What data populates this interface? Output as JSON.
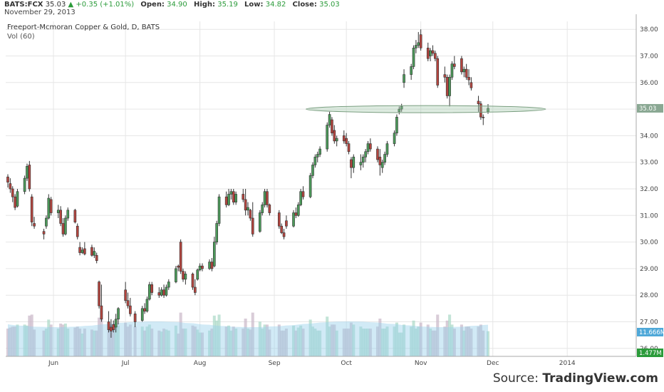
{
  "header": {
    "symbol": "BATS:FCX",
    "last": "35.03",
    "change_arrow": "▲",
    "change": "+0.35 (+1.01%)",
    "open_label": "Open:",
    "open": "34.90",
    "high_label": "High:",
    "high": "35.19",
    "low_label": "Low:",
    "low": "34.82",
    "close_label": "Close:",
    "close": "35.03",
    "date": "November 29, 2013"
  },
  "source": {
    "prefix": "Source: ",
    "name": "TradingView.com"
  },
  "chart_data": {
    "type": "candlestick",
    "title": "Freeport-Mcmoran Copper & Gold, D, BATS",
    "volume_label": "Vol (60)",
    "ylim": [
      25.7,
      38.3
    ],
    "yticks": [
      26,
      27,
      28,
      29,
      30,
      31,
      32,
      33,
      34,
      35,
      36,
      37,
      38
    ],
    "ytick_labels": [
      "26.00",
      "27.00",
      "28.00",
      "29.00",
      "30.00",
      "31.00",
      "32.00",
      "33.00",
      "34.00",
      "35.00",
      "36.00",
      "37.00",
      "38.00"
    ],
    "x_labels": [
      "Jun",
      "Jul",
      "Aug",
      "Sep",
      "Oct",
      "Nov",
      "Dec",
      "2014"
    ],
    "x_label_dates": [
      "2013-06-01",
      "2013-07-01",
      "2013-08-01",
      "2013-09-01",
      "2013-10-01",
      "2013-11-01",
      "2013-12-01",
      "2014-01-01"
    ],
    "grid": true,
    "price_marker": "35.03",
    "volume_marker": "11.666M",
    "volume_ma_marker": "1.477M",
    "annotation": {
      "type": "ellipse",
      "from_date": "2013-09-16",
      "to_date": "2013-12-23",
      "price": 35.0
    },
    "colors": {
      "up": "#4c9a5a",
      "down": "#b4453f",
      "grid": "#e6e6e6",
      "ellipse": "#9fc5a5",
      "volume_ma": "#9ad1ec",
      "marker": "#4fa8d8"
    },
    "candles": [
      {
        "date": "2013-05-13",
        "o": 32.45,
        "h": 32.55,
        "l": 32.05,
        "c": 32.25
      },
      {
        "date": "2013-05-14",
        "o": 32.2,
        "h": 32.4,
        "l": 31.85,
        "c": 32.0
      },
      {
        "date": "2013-05-15",
        "o": 32.0,
        "h": 32.1,
        "l": 31.5,
        "c": 31.7
      },
      {
        "date": "2013-05-16",
        "o": 31.7,
        "h": 31.8,
        "l": 31.2,
        "c": 31.3
      },
      {
        "date": "2013-05-17",
        "o": 31.35,
        "h": 32.0,
        "l": 31.3,
        "c": 31.9
      },
      {
        "date": "2013-05-20",
        "o": 31.9,
        "h": 32.5,
        "l": 31.8,
        "c": 32.4
      },
      {
        "date": "2013-05-21",
        "o": 32.4,
        "h": 32.95,
        "l": 32.3,
        "c": 32.85
      },
      {
        "date": "2013-05-22",
        "o": 32.9,
        "h": 33.05,
        "l": 31.9,
        "c": 32.0
      },
      {
        "date": "2013-05-23",
        "o": 31.7,
        "h": 31.8,
        "l": 30.6,
        "c": 30.75
      },
      {
        "date": "2013-05-24",
        "o": 30.7,
        "h": 30.95,
        "l": 30.5,
        "c": 30.6
      },
      {
        "date": "2013-05-28",
        "o": 30.4,
        "h": 30.5,
        "l": 30.1,
        "c": 30.3
      },
      {
        "date": "2013-05-29",
        "o": 30.6,
        "h": 31.0,
        "l": 30.5,
        "c": 30.9
      },
      {
        "date": "2013-05-30",
        "o": 30.9,
        "h": 31.8,
        "l": 30.85,
        "c": 31.65
      },
      {
        "date": "2013-05-31",
        "o": 31.6,
        "h": 31.7,
        "l": 31.0,
        "c": 31.1
      },
      {
        "date": "2013-06-03",
        "o": 31.1,
        "h": 31.4,
        "l": 30.9,
        "c": 31.2
      },
      {
        "date": "2013-06-04",
        "o": 31.2,
        "h": 31.35,
        "l": 30.6,
        "c": 30.7
      },
      {
        "date": "2013-06-05",
        "o": 30.7,
        "h": 30.9,
        "l": 30.2,
        "c": 30.3
      },
      {
        "date": "2013-06-06",
        "o": 30.3,
        "h": 31.0,
        "l": 30.25,
        "c": 30.9
      },
      {
        "date": "2013-06-07",
        "o": 30.9,
        "h": 31.3,
        "l": 30.8,
        "c": 31.2
      },
      {
        "date": "2013-06-10",
        "o": 31.2,
        "h": 31.25,
        "l": 30.7,
        "c": 30.75
      },
      {
        "date": "2013-06-11",
        "o": 30.6,
        "h": 30.7,
        "l": 30.1,
        "c": 30.2
      },
      {
        "date": "2013-06-12",
        "o": 29.8,
        "h": 30.0,
        "l": 29.5,
        "c": 29.6
      },
      {
        "date": "2013-06-13",
        "o": 29.6,
        "h": 29.8,
        "l": 29.55,
        "c": 29.7
      },
      {
        "date": "2013-06-14",
        "o": 29.75,
        "h": 30.0,
        "l": 29.5,
        "c": 29.55
      },
      {
        "date": "2013-06-17",
        "o": 29.8,
        "h": 29.9,
        "l": 29.45,
        "c": 29.5
      },
      {
        "date": "2013-06-18",
        "o": 29.5,
        "h": 29.8,
        "l": 29.4,
        "c": 29.65
      },
      {
        "date": "2013-06-19",
        "o": 29.5,
        "h": 29.6,
        "l": 29.2,
        "c": 29.3
      },
      {
        "date": "2013-06-20",
        "o": 28.5,
        "h": 28.55,
        "l": 27.5,
        "c": 27.6
      },
      {
        "date": "2013-06-21",
        "o": 27.6,
        "h": 28.4,
        "l": 27.0,
        "c": 27.1
      },
      {
        "date": "2013-06-24",
        "o": 27.0,
        "h": 27.4,
        "l": 26.6,
        "c": 26.7
      },
      {
        "date": "2013-06-25",
        "o": 26.8,
        "h": 27.1,
        "l": 26.4,
        "c": 26.65
      },
      {
        "date": "2013-06-26",
        "o": 26.9,
        "h": 27.05,
        "l": 26.6,
        "c": 26.7
      },
      {
        "date": "2013-06-27",
        "o": 26.8,
        "h": 27.3,
        "l": 26.6,
        "c": 27.1
      },
      {
        "date": "2013-06-28",
        "o": 27.1,
        "h": 27.55,
        "l": 26.9,
        "c": 27.5
      },
      {
        "date": "2013-07-01",
        "o": 28.2,
        "h": 28.5,
        "l": 27.7,
        "c": 27.8
      },
      {
        "date": "2013-07-02",
        "o": 27.8,
        "h": 28.1,
        "l": 27.5,
        "c": 27.6
      },
      {
        "date": "2013-07-03",
        "o": 27.6,
        "h": 27.9,
        "l": 27.2,
        "c": 27.3
      },
      {
        "date": "2013-07-05",
        "o": 27.3,
        "h": 27.4,
        "l": 26.8,
        "c": 27.0
      },
      {
        "date": "2013-07-08",
        "o": 27.05,
        "h": 27.6,
        "l": 27.0,
        "c": 27.5
      },
      {
        "date": "2013-07-09",
        "o": 27.5,
        "h": 27.7,
        "l": 27.3,
        "c": 27.4
      },
      {
        "date": "2013-07-10",
        "o": 27.4,
        "h": 27.95,
        "l": 27.35,
        "c": 27.85
      },
      {
        "date": "2013-07-11",
        "o": 27.85,
        "h": 28.5,
        "l": 27.8,
        "c": 28.4
      },
      {
        "date": "2013-07-12",
        "o": 28.4,
        "h": 28.5,
        "l": 28.0,
        "c": 28.1
      },
      {
        "date": "2013-07-15",
        "o": 28.1,
        "h": 28.3,
        "l": 27.9,
        "c": 28.0
      },
      {
        "date": "2013-07-16",
        "o": 28.0,
        "h": 28.3,
        "l": 27.95,
        "c": 28.2
      },
      {
        "date": "2013-07-17",
        "o": 28.2,
        "h": 28.4,
        "l": 27.9,
        "c": 28.0
      },
      {
        "date": "2013-07-18",
        "o": 28.0,
        "h": 28.4,
        "l": 27.95,
        "c": 28.3
      },
      {
        "date": "2013-07-19",
        "o": 28.3,
        "h": 28.6,
        "l": 28.2,
        "c": 28.5
      },
      {
        "date": "2013-07-22",
        "o": 28.5,
        "h": 29.1,
        "l": 28.45,
        "c": 29.0
      },
      {
        "date": "2013-07-23",
        "o": 29.1,
        "h": 29.15,
        "l": 28.9,
        "c": 29.05
      },
      {
        "date": "2013-07-24",
        "o": 30.0,
        "h": 30.1,
        "l": 28.8,
        "c": 28.9
      },
      {
        "date": "2013-07-25",
        "o": 28.9,
        "h": 29.0,
        "l": 28.5,
        "c": 28.6
      },
      {
        "date": "2013-07-26",
        "o": 28.6,
        "h": 28.9,
        "l": 28.4,
        "c": 28.8
      },
      {
        "date": "2013-07-29",
        "o": 28.8,
        "h": 28.85,
        "l": 28.2,
        "c": 28.3
      },
      {
        "date": "2013-07-30",
        "o": 28.3,
        "h": 28.6,
        "l": 28.0,
        "c": 28.1
      },
      {
        "date": "2013-07-31",
        "o": 28.6,
        "h": 29.0,
        "l": 28.55,
        "c": 28.95
      },
      {
        "date": "2013-08-01",
        "o": 28.95,
        "h": 29.2,
        "l": 28.9,
        "c": 29.1
      },
      {
        "date": "2013-08-02",
        "o": 29.1,
        "h": 29.2,
        "l": 28.9,
        "c": 29.0
      },
      {
        "date": "2013-08-05",
        "o": 29.0,
        "h": 29.35,
        "l": 28.95,
        "c": 29.25
      },
      {
        "date": "2013-08-06",
        "o": 29.25,
        "h": 29.4,
        "l": 28.9,
        "c": 29.0
      },
      {
        "date": "2013-08-07",
        "o": 29.1,
        "h": 30.2,
        "l": 29.05,
        "c": 30.0
      },
      {
        "date": "2013-08-08",
        "o": 30.0,
        "h": 30.8,
        "l": 29.9,
        "c": 30.7
      },
      {
        "date": "2013-08-09",
        "o": 30.7,
        "h": 31.8,
        "l": 30.6,
        "c": 31.7
      },
      {
        "date": "2013-08-12",
        "o": 31.7,
        "h": 31.9,
        "l": 31.3,
        "c": 31.4
      },
      {
        "date": "2013-08-13",
        "o": 31.4,
        "h": 32.0,
        "l": 31.35,
        "c": 31.8
      },
      {
        "date": "2013-08-14",
        "o": 31.8,
        "h": 32.0,
        "l": 31.6,
        "c": 31.9
      },
      {
        "date": "2013-08-15",
        "o": 31.9,
        "h": 32.0,
        "l": 31.4,
        "c": 31.5
      },
      {
        "date": "2013-08-16",
        "o": 31.5,
        "h": 31.9,
        "l": 31.4,
        "c": 31.8
      },
      {
        "date": "2013-08-19",
        "o": 31.8,
        "h": 32.0,
        "l": 31.5,
        "c": 31.6
      },
      {
        "date": "2013-08-20",
        "o": 31.6,
        "h": 32.0,
        "l": 31.0,
        "c": 31.2
      },
      {
        "date": "2013-08-21",
        "o": 31.2,
        "h": 31.5,
        "l": 31.0,
        "c": 31.3
      },
      {
        "date": "2013-08-22",
        "o": 31.2,
        "h": 31.25,
        "l": 30.8,
        "c": 30.9
      },
      {
        "date": "2013-08-23",
        "o": 30.9,
        "h": 31.5,
        "l": 30.2,
        "c": 30.3
      },
      {
        "date": "2013-08-26",
        "o": 30.4,
        "h": 31.2,
        "l": 30.35,
        "c": 31.1
      },
      {
        "date": "2013-08-27",
        "o": 31.1,
        "h": 31.5,
        "l": 31.0,
        "c": 31.4
      },
      {
        "date": "2013-08-28",
        "o": 31.4,
        "h": 32.0,
        "l": 31.3,
        "c": 31.9
      },
      {
        "date": "2013-08-29",
        "o": 31.9,
        "h": 32.0,
        "l": 31.3,
        "c": 31.4
      },
      {
        "date": "2013-08-30",
        "o": 31.4,
        "h": 31.45,
        "l": 31.0,
        "c": 31.1
      },
      {
        "date": "2013-09-03",
        "o": 31.1,
        "h": 31.2,
        "l": 30.5,
        "c": 30.6
      },
      {
        "date": "2013-09-04",
        "o": 30.6,
        "h": 30.7,
        "l": 30.3,
        "c": 30.35
      },
      {
        "date": "2013-09-05",
        "o": 30.35,
        "h": 30.5,
        "l": 30.1,
        "c": 30.2
      },
      {
        "date": "2013-09-06",
        "o": 30.8,
        "h": 31.0,
        "l": 30.5,
        "c": 30.6
      },
      {
        "date": "2013-09-09",
        "o": 30.6,
        "h": 31.2,
        "l": 30.55,
        "c": 31.1
      },
      {
        "date": "2013-09-10",
        "o": 31.1,
        "h": 31.3,
        "l": 30.9,
        "c": 31.0
      },
      {
        "date": "2013-09-11",
        "o": 31.0,
        "h": 31.5,
        "l": 30.95,
        "c": 31.4
      },
      {
        "date": "2013-09-12",
        "o": 31.4,
        "h": 32.0,
        "l": 31.35,
        "c": 31.9
      },
      {
        "date": "2013-09-13",
        "o": 31.9,
        "h": 32.1,
        "l": 31.6,
        "c": 31.7
      },
      {
        "date": "2013-09-16",
        "o": 31.7,
        "h": 32.6,
        "l": 31.65,
        "c": 32.5
      },
      {
        "date": "2013-09-17",
        "o": 32.5,
        "h": 33.0,
        "l": 32.4,
        "c": 32.9
      },
      {
        "date": "2013-09-18",
        "o": 32.9,
        "h": 33.3,
        "l": 32.8,
        "c": 33.2
      },
      {
        "date": "2013-09-19",
        "o": 33.2,
        "h": 33.4,
        "l": 33.0,
        "c": 33.3
      },
      {
        "date": "2013-09-20",
        "o": 33.3,
        "h": 33.6,
        "l": 33.2,
        "c": 33.5
      },
      {
        "date": "2013-09-23",
        "o": 33.5,
        "h": 34.5,
        "l": 33.4,
        "c": 34.4
      },
      {
        "date": "2013-09-24",
        "o": 34.4,
        "h": 34.9,
        "l": 34.3,
        "c": 34.8
      },
      {
        "date": "2013-09-25",
        "o": 34.6,
        "h": 34.7,
        "l": 34.0,
        "c": 34.1
      },
      {
        "date": "2013-09-26",
        "o": 34.2,
        "h": 34.4,
        "l": 33.7,
        "c": 33.8
      },
      {
        "date": "2013-09-27",
        "o": 33.8,
        "h": 34.0,
        "l": 33.6,
        "c": 33.9
      },
      {
        "date": "2013-09-30",
        "o": 34.0,
        "h": 34.2,
        "l": 33.7,
        "c": 33.8
      },
      {
        "date": "2013-10-01",
        "o": 33.9,
        "h": 34.1,
        "l": 33.6,
        "c": 33.7
      },
      {
        "date": "2013-10-02",
        "o": 33.7,
        "h": 33.8,
        "l": 33.3,
        "c": 33.4
      },
      {
        "date": "2013-10-03",
        "o": 33.1,
        "h": 33.2,
        "l": 32.4,
        "c": 32.8
      },
      {
        "date": "2013-10-04",
        "o": 32.8,
        "h": 33.3,
        "l": 32.6,
        "c": 33.2
      },
      {
        "date": "2013-10-07",
        "o": 32.9,
        "h": 33.3,
        "l": 32.7,
        "c": 33.0
      },
      {
        "date": "2013-10-08",
        "o": 33.0,
        "h": 33.3,
        "l": 32.8,
        "c": 33.2
      },
      {
        "date": "2013-10-09",
        "o": 33.2,
        "h": 33.5,
        "l": 33.0,
        "c": 33.4
      },
      {
        "date": "2013-10-10",
        "o": 33.4,
        "h": 33.8,
        "l": 33.3,
        "c": 33.7
      },
      {
        "date": "2013-10-11",
        "o": 33.7,
        "h": 33.9,
        "l": 33.4,
        "c": 33.5
      },
      {
        "date": "2013-10-14",
        "o": 33.5,
        "h": 33.6,
        "l": 33.0,
        "c": 33.1
      },
      {
        "date": "2013-10-15",
        "o": 33.2,
        "h": 33.5,
        "l": 32.5,
        "c": 32.9
      },
      {
        "date": "2013-10-16",
        "o": 32.8,
        "h": 33.1,
        "l": 32.6,
        "c": 33.0
      },
      {
        "date": "2013-10-17",
        "o": 33.0,
        "h": 33.4,
        "l": 32.9,
        "c": 33.3
      },
      {
        "date": "2013-10-18",
        "o": 33.3,
        "h": 33.8,
        "l": 33.2,
        "c": 33.7
      },
      {
        "date": "2013-10-21",
        "o": 33.7,
        "h": 34.2,
        "l": 33.6,
        "c": 34.1
      },
      {
        "date": "2013-10-22",
        "o": 34.1,
        "h": 34.8,
        "l": 34.0,
        "c": 34.7
      },
      {
        "date": "2013-10-23",
        "o": 34.9,
        "h": 35.1,
        "l": 34.8,
        "c": 35.0
      },
      {
        "date": "2013-10-24",
        "o": 35.0,
        "h": 35.2,
        "l": 34.9,
        "c": 35.1
      },
      {
        "date": "2013-10-25",
        "o": 36.0,
        "h": 36.5,
        "l": 35.8,
        "c": 36.3
      },
      {
        "date": "2013-10-28",
        "o": 36.3,
        "h": 36.7,
        "l": 36.1,
        "c": 36.6
      },
      {
        "date": "2013-10-29",
        "o": 36.6,
        "h": 37.4,
        "l": 36.5,
        "c": 37.3
      },
      {
        "date": "2013-10-30",
        "o": 37.3,
        "h": 37.6,
        "l": 37.1,
        "c": 37.4
      },
      {
        "date": "2013-10-31",
        "o": 37.4,
        "h": 37.9,
        "l": 37.3,
        "c": 37.5
      },
      {
        "date": "2013-11-01",
        "o": 37.8,
        "h": 38.0,
        "l": 37.2,
        "c": 37.3
      },
      {
        "date": "2013-11-04",
        "o": 37.3,
        "h": 37.5,
        "l": 36.8,
        "c": 36.9
      },
      {
        "date": "2013-11-05",
        "o": 37.0,
        "h": 37.3,
        "l": 36.8,
        "c": 37.2
      },
      {
        "date": "2013-11-06",
        "o": 37.2,
        "h": 37.4,
        "l": 37.0,
        "c": 37.1
      },
      {
        "date": "2013-11-07",
        "o": 37.1,
        "h": 37.2,
        "l": 36.8,
        "c": 36.9
      },
      {
        "date": "2013-11-08",
        "o": 36.9,
        "h": 37.0,
        "l": 35.8,
        "c": 35.9
      },
      {
        "date": "2013-11-11",
        "o": 36.3,
        "h": 36.6,
        "l": 36.0,
        "c": 36.2
      },
      {
        "date": "2013-11-12",
        "o": 36.2,
        "h": 36.3,
        "l": 35.4,
        "c": 35.5
      },
      {
        "date": "2013-11-13",
        "o": 35.5,
        "h": 36.3,
        "l": 35.1,
        "c": 36.2
      },
      {
        "date": "2013-11-14",
        "o": 36.2,
        "h": 36.8,
        "l": 36.1,
        "c": 36.7
      },
      {
        "date": "2013-11-15",
        "o": 36.7,
        "h": 37.0,
        "l": 36.5,
        "c": 36.6
      },
      {
        "date": "2013-11-18",
        "o": 36.9,
        "h": 37.0,
        "l": 36.3,
        "c": 36.4
      },
      {
        "date": "2013-11-19",
        "o": 36.4,
        "h": 36.6,
        "l": 36.2,
        "c": 36.5
      },
      {
        "date": "2013-11-20",
        "o": 36.5,
        "h": 36.7,
        "l": 36.1,
        "c": 36.2
      },
      {
        "date": "2013-11-21",
        "o": 36.2,
        "h": 36.5,
        "l": 35.9,
        "c": 36.1
      },
      {
        "date": "2013-11-22",
        "o": 36.0,
        "h": 36.2,
        "l": 35.7,
        "c": 35.8
      },
      {
        "date": "2013-11-25",
        "o": 35.3,
        "h": 35.5,
        "l": 34.9,
        "c": 35.2
      },
      {
        "date": "2013-11-26",
        "o": 35.2,
        "h": 35.3,
        "l": 34.6,
        "c": 34.7
      },
      {
        "date": "2013-11-27",
        "o": 34.7,
        "h": 34.8,
        "l": 34.4,
        "c": 34.68
      },
      {
        "date": "2013-11-29",
        "o": 34.9,
        "h": 35.19,
        "l": 34.82,
        "c": 35.03
      }
    ]
  }
}
